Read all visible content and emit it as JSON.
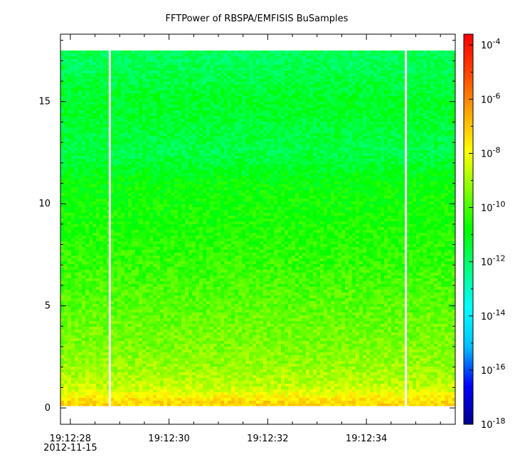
{
  "chart_data": {
    "type": "heatmap",
    "title": "FFTPower of RBSPA/EMFISIS  BuSamples",
    "xlabel": "",
    "ylabel": "",
    "x": {
      "ticks": [
        {
          "value": "19:12:28",
          "sublabel": "2012-11-15"
        },
        {
          "value": "19:12:30",
          "sublabel": ""
        },
        {
          "value": "19:12:32",
          "sublabel": ""
        },
        {
          "value": "19:12:34",
          "sublabel": ""
        }
      ],
      "range_seconds_after_19_12_28": [
        -0.2,
        7.8
      ]
    },
    "y": {
      "range": [
        -0.8,
        18.3
      ],
      "ticks": [
        0,
        5,
        10,
        15
      ]
    },
    "colorbar": {
      "scale": "log",
      "range_exponents": [
        -18,
        -3.6
      ],
      "tick_labels": [
        "10-4",
        "10-6",
        "10-8",
        "10-10",
        "10-12",
        "10-14",
        "10-16",
        "10-18"
      ],
      "tick_values": [
        0.0001,
        1e-06,
        1e-08,
        1e-10,
        1e-12,
        1e-14,
        1e-16,
        1e-18
      ],
      "colormap": [
        "#00008b",
        "#0000ff",
        "#00bfff",
        "#00ffff",
        "#00ff80",
        "#00ff00",
        "#80ff00",
        "#ffff00",
        "#ffa500",
        "#ff4500",
        "#ff0000"
      ]
    },
    "data_extent": {
      "y_max": 17.5,
      "y_min": 0.1,
      "gaps_at_seconds": [
        0.8,
        6.8
      ]
    },
    "approx_log10_power_by_frequency": [
      {
        "y": 0.3,
        "value": -7.3
      },
      {
        "y": 1.0,
        "value": -8.6
      },
      {
        "y": 2.0,
        "value": -9.1
      },
      {
        "y": 3.0,
        "value": -9.4
      },
      {
        "y": 5.0,
        "value": -9.8
      },
      {
        "y": 8.0,
        "value": -10.4
      },
      {
        "y": 11.0,
        "value": -10.8
      },
      {
        "y": 12.5,
        "value": -11.6
      },
      {
        "y": 15.0,
        "value": -11.2
      },
      {
        "y": 17.0,
        "value": -11.8
      }
    ]
  }
}
